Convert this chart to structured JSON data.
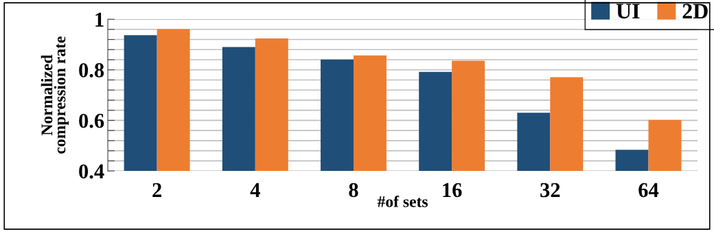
{
  "chart_data": {
    "type": "bar",
    "xlabel": "#of sets",
    "ylabel": "Normalized\ncompression rate",
    "categories": [
      "2",
      "4",
      "8",
      "16",
      "32",
      "64"
    ],
    "series": [
      {
        "name": "UI",
        "color": "#1f4e79",
        "values": [
          0.937,
          0.89,
          0.841,
          0.792,
          0.63,
          0.484
        ]
      },
      {
        "name": "2D",
        "color": "#ed7d31",
        "values": [
          0.961,
          0.924,
          0.857,
          0.836,
          0.771,
          0.602
        ]
      }
    ],
    "ylim": [
      0.4,
      1
    ],
    "yticks": [
      0.4,
      {
        "value": 0.44,
        "label": null
      },
      {
        "value": 0.48,
        "label": null
      },
      {
        "value": 0.52,
        "label": null
      },
      {
        "value": 0.56,
        "label": null
      },
      0.6,
      {
        "value": 0.64,
        "label": null
      },
      {
        "value": 0.68,
        "label": null
      },
      {
        "value": 0.72,
        "label": null
      },
      {
        "value": 0.76,
        "label": null
      },
      0.8,
      {
        "value": 0.84,
        "label": null
      },
      {
        "value": 0.88,
        "label": null
      },
      {
        "value": 0.92,
        "label": null
      },
      {
        "value": 0.96,
        "label": null
      },
      1
    ],
    "grid": "y",
    "legend": "top right"
  }
}
